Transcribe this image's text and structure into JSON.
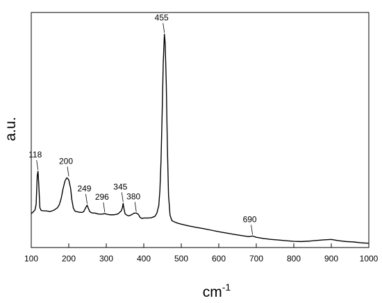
{
  "chart_data": {
    "type": "line",
    "title": "",
    "xlabel": "cm",
    "xlabel_superscript": "-1",
    "ylabel": "a.u.",
    "xlim": [
      100,
      1000
    ],
    "ylim": [
      0,
      1
    ],
    "x_ticks": [
      100,
      200,
      300,
      400,
      500,
      600,
      700,
      800,
      900,
      1000
    ],
    "grid": false,
    "legend": "none",
    "line_color": "#000000",
    "series": [
      {
        "x": [
          100,
          105,
          110,
          113,
          116,
          118,
          120,
          123,
          126,
          130,
          140,
          150,
          160,
          170,
          175,
          180,
          185,
          190,
          195,
          200,
          205,
          208,
          212,
          216,
          220,
          225,
          230,
          235,
          240,
          245,
          249,
          252,
          256,
          260,
          265,
          270,
          280,
          290,
          296,
          300,
          310,
          320,
          330,
          335,
          340,
          343,
          345,
          347,
          350,
          355,
          360,
          365,
          370,
          375,
          380,
          383,
          386,
          390,
          395,
          400,
          410,
          420,
          430,
          435,
          440,
          443,
          446,
          449,
          452,
          455,
          457,
          460,
          463,
          466,
          470,
          475,
          480,
          490,
          500,
          520,
          540,
          560,
          580,
          600,
          620,
          640,
          660,
          680,
          690,
          700,
          720,
          740,
          760,
          780,
          800,
          820,
          840,
          860,
          880,
          900,
          920,
          940,
          960,
          980,
          1000
        ],
        "values": [
          0.132,
          0.14,
          0.15,
          0.175,
          0.31,
          0.33,
          0.27,
          0.16,
          0.148,
          0.146,
          0.145,
          0.142,
          0.148,
          0.16,
          0.175,
          0.205,
          0.25,
          0.285,
          0.3,
          0.29,
          0.25,
          0.2,
          0.16,
          0.145,
          0.142,
          0.14,
          0.138,
          0.138,
          0.142,
          0.16,
          0.172,
          0.158,
          0.142,
          0.137,
          0.135,
          0.135,
          0.13,
          0.13,
          0.133,
          0.13,
          0.127,
          0.127,
          0.13,
          0.137,
          0.145,
          0.16,
          0.18,
          0.158,
          0.132,
          0.125,
          0.122,
          0.125,
          0.13,
          0.135,
          0.135,
          0.132,
          0.128,
          0.115,
          0.11,
          0.112,
          0.112,
          0.113,
          0.12,
          0.135,
          0.17,
          0.24,
          0.38,
          0.6,
          0.84,
          0.97,
          0.93,
          0.74,
          0.44,
          0.22,
          0.125,
          0.1,
          0.095,
          0.088,
          0.083,
          0.075,
          0.068,
          0.062,
          0.055,
          0.048,
          0.042,
          0.036,
          0.03,
          0.025,
          0.028,
          0.022,
          0.016,
          0.012,
          0.009,
          0.006,
          0.003,
          0.002,
          0.004,
          0.007,
          0.01,
          0.012,
          0.006,
          0.002,
          0.0,
          -0.004,
          -0.006
        ]
      }
    ],
    "annotations": [
      {
        "label": "118",
        "x": 118,
        "y": 0.33
      },
      {
        "label": "200",
        "x": 200,
        "y": 0.3
      },
      {
        "label": "249",
        "x": 249,
        "y": 0.172
      },
      {
        "label": "296",
        "x": 296,
        "y": 0.133
      },
      {
        "label": "345",
        "x": 345,
        "y": 0.18
      },
      {
        "label": "380",
        "x": 380,
        "y": 0.135
      },
      {
        "label": "455",
        "x": 455,
        "y": 0.97
      },
      {
        "label": "690",
        "x": 690,
        "y": 0.028
      }
    ]
  }
}
